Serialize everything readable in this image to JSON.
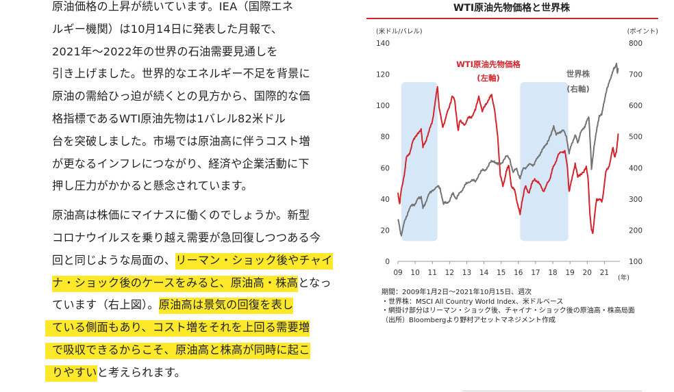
{
  "article": {
    "p1": [
      "原油価格の上昇が続いています。IEA（国際エネ",
      "ルギー機関）は10月14日に発表した月報で、",
      "2021年～2022年の世界の石油需要見通しを",
      "引き上げました。世界的なエネルギー不足を背景に",
      "原油の需給ひっ迫が続くとの見方から、国際的な価",
      "格指標であるWTI原油先物は1バレル82米ドル",
      "台を突破しました。市場では原油高に伴うコスト増",
      "が更なるインフレにつながり、経済や企業活動に下",
      "押し圧力がかかると懸念されています。"
    ],
    "p2": {
      "l1": "原油高は株価にマイナスに働くのでしょうか。新型",
      "l2": "コロナウイルスを乗り越え需要が急回復しつつある今",
      "l3_plain": "回と同じような局面の、",
      "l3_hl": "リーマン・ショック後やチャイ",
      "l4_hl": "ナ・ショック後のケースをみると、原油高・株高",
      "l4_plain": "となっ",
      "l5_plain": "ています（右上図）。",
      "l5_hl": "原油高は景気の回復を表し",
      "l6_hl": "ている側面もあり、コスト増をそれを上回る需要増",
      "l7_hl": "で吸収できるからこそ、原油高と株高が同時に起こ",
      "l8_hl": "りやすい",
      "l8_plain": "と考えられます。"
    }
  },
  "figure": {
    "title": "WTI原油先物価格と世界株",
    "notes": [
      "期間：2009年1月2日～2021年10月15日、週次",
      "・世界株：MSCI All Country World Index、米ドルベース",
      "・網掛け部分はリーマン・ショック後、チャイナ・ショック後の原油高・株高局面",
      "（出所）Bloombergより野村アセットマネジメント作成"
    ]
  },
  "chart_data": {
    "type": "line",
    "left_axis_unit": "(米ドル/バレル)",
    "right_axis_unit": "(ポイント)",
    "x_unit": "(年)",
    "x_ticks": [
      "09",
      "10",
      "11",
      "12",
      "13",
      "14",
      "15",
      "16",
      "17",
      "18",
      "19",
      "20",
      "21"
    ],
    "xlim": [
      2009.0,
      2021.9
    ],
    "ylim_left": [
      0,
      140
    ],
    "ylim_right": [
      100,
      800
    ],
    "y_ticks_left": [
      0,
      20,
      40,
      60,
      80,
      100,
      120,
      140
    ],
    "y_ticks_right": [
      100,
      200,
      300,
      400,
      500,
      600,
      700,
      800
    ],
    "shaded_periods": [
      [
        2009.2,
        2011.3
      ],
      [
        2016.1,
        2018.9
      ]
    ],
    "series": [
      {
        "name": "WTI原油先物価格",
        "sub_label": "(左軸)",
        "axis": "left",
        "color": "#d4242b",
        "points": [
          [
            2009.0,
            44
          ],
          [
            2009.1,
            37
          ],
          [
            2009.2,
            46
          ],
          [
            2009.4,
            58
          ],
          [
            2009.5,
            67
          ],
          [
            2009.7,
            70
          ],
          [
            2009.9,
            78
          ],
          [
            2010.0,
            80
          ],
          [
            2010.2,
            82
          ],
          [
            2010.35,
            85
          ],
          [
            2010.45,
            73
          ],
          [
            2010.6,
            77
          ],
          [
            2010.8,
            83
          ],
          [
            2011.0,
            90
          ],
          [
            2011.2,
            105
          ],
          [
            2011.3,
            112
          ],
          [
            2011.4,
            98
          ],
          [
            2011.6,
            86
          ],
          [
            2011.8,
            93
          ],
          [
            2011.95,
            98
          ],
          [
            2012.15,
            106
          ],
          [
            2012.3,
            103
          ],
          [
            2012.5,
            84
          ],
          [
            2012.6,
            90
          ],
          [
            2012.9,
            88
          ],
          [
            2013.1,
            92
          ],
          [
            2013.3,
            93
          ],
          [
            2013.5,
            97
          ],
          [
            2013.7,
            106
          ],
          [
            2013.9,
            96
          ],
          [
            2014.1,
            101
          ],
          [
            2014.3,
            104
          ],
          [
            2014.45,
            107
          ],
          [
            2014.6,
            98
          ],
          [
            2014.8,
            80
          ],
          [
            2014.95,
            55
          ],
          [
            2015.1,
            48
          ],
          [
            2015.3,
            58
          ],
          [
            2015.45,
            61
          ],
          [
            2015.6,
            48
          ],
          [
            2015.8,
            45
          ],
          [
            2015.95,
            37
          ],
          [
            2016.1,
            30
          ],
          [
            2016.2,
            38
          ],
          [
            2016.4,
            48
          ],
          [
            2016.6,
            44
          ],
          [
            2016.8,
            50
          ],
          [
            2016.95,
            53
          ],
          [
            2017.2,
            50
          ],
          [
            2017.45,
            45
          ],
          [
            2017.6,
            48
          ],
          [
            2017.8,
            52
          ],
          [
            2017.95,
            58
          ],
          [
            2018.1,
            62
          ],
          [
            2018.3,
            68
          ],
          [
            2018.5,
            70
          ],
          [
            2018.7,
            71
          ],
          [
            2018.85,
            60
          ],
          [
            2018.95,
            45
          ],
          [
            2019.1,
            52
          ],
          [
            2019.3,
            63
          ],
          [
            2019.45,
            54
          ],
          [
            2019.6,
            56
          ],
          [
            2019.8,
            57
          ],
          [
            2019.95,
            61
          ],
          [
            2020.05,
            53
          ],
          [
            2020.15,
            32
          ],
          [
            2020.25,
            20
          ],
          [
            2020.32,
            18
          ],
          [
            2020.42,
            28
          ],
          [
            2020.55,
            40
          ],
          [
            2020.7,
            40
          ],
          [
            2020.85,
            38
          ],
          [
            2020.95,
            45
          ],
          [
            2021.1,
            58
          ],
          [
            2021.3,
            62
          ],
          [
            2021.5,
            73
          ],
          [
            2021.6,
            67
          ],
          [
            2021.7,
            70
          ],
          [
            2021.8,
            82
          ]
        ]
      },
      {
        "name": "世界株",
        "sub_label": "(右軸)",
        "axis": "right",
        "color": "#737373",
        "points": [
          [
            2009.0,
            235
          ],
          [
            2009.1,
            208
          ],
          [
            2009.2,
            182
          ],
          [
            2009.4,
            232
          ],
          [
            2009.6,
            260
          ],
          [
            2009.8,
            280
          ],
          [
            2010.0,
            285
          ],
          [
            2010.2,
            302
          ],
          [
            2010.35,
            308
          ],
          [
            2010.45,
            270
          ],
          [
            2010.6,
            288
          ],
          [
            2010.8,
            315
          ],
          [
            2011.0,
            328
          ],
          [
            2011.3,
            340
          ],
          [
            2011.45,
            335
          ],
          [
            2011.65,
            283
          ],
          [
            2011.8,
            290
          ],
          [
            2012.0,
            292
          ],
          [
            2012.2,
            320
          ],
          [
            2012.4,
            300
          ],
          [
            2012.6,
            320
          ],
          [
            2012.8,
            335
          ],
          [
            2013.0,
            350
          ],
          [
            2013.3,
            362
          ],
          [
            2013.5,
            355
          ],
          [
            2013.7,
            378
          ],
          [
            2013.9,
            392
          ],
          [
            2014.1,
            394
          ],
          [
            2014.4,
            418
          ],
          [
            2014.6,
            422
          ],
          [
            2014.8,
            410
          ],
          [
            2015.0,
            415
          ],
          [
            2015.3,
            438
          ],
          [
            2015.5,
            428
          ],
          [
            2015.7,
            385
          ],
          [
            2015.9,
            398
          ],
          [
            2016.1,
            365
          ],
          [
            2016.3,
            400
          ],
          [
            2016.5,
            403
          ],
          [
            2016.7,
            412
          ],
          [
            2016.9,
            410
          ],
          [
            2017.1,
            430
          ],
          [
            2017.3,
            450
          ],
          [
            2017.5,
            465
          ],
          [
            2017.7,
            485
          ],
          [
            2017.9,
            505
          ],
          [
            2018.05,
            535
          ],
          [
            2018.2,
            505
          ],
          [
            2018.4,
            515
          ],
          [
            2018.6,
            520
          ],
          [
            2018.8,
            500
          ],
          [
            2018.95,
            445
          ],
          [
            2019.1,
            478
          ],
          [
            2019.3,
            505
          ],
          [
            2019.45,
            480
          ],
          [
            2019.6,
            512
          ],
          [
            2019.8,
            525
          ],
          [
            2019.95,
            548
          ],
          [
            2020.1,
            560
          ],
          [
            2020.2,
            460
          ],
          [
            2020.25,
            395
          ],
          [
            2020.4,
            470
          ],
          [
            2020.55,
            520
          ],
          [
            2020.7,
            568
          ],
          [
            2020.85,
            570
          ],
          [
            2020.95,
            605
          ],
          [
            2021.1,
            640
          ],
          [
            2021.3,
            680
          ],
          [
            2021.5,
            710
          ],
          [
            2021.6,
            722
          ],
          [
            2021.7,
            735
          ],
          [
            2021.75,
            705
          ],
          [
            2021.8,
            720
          ]
        ]
      }
    ]
  }
}
